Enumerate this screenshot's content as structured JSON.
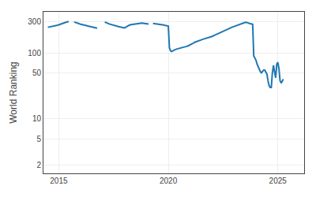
{
  "chart_data": {
    "type": "line",
    "ylabel": "World Ranking",
    "x": [
      2014.5,
      2014.6,
      2014.7,
      2014.8,
      2014.9,
      2015.0,
      2015.1,
      2015.15,
      2015.2,
      2015.3,
      2015.35,
      2015.4,
      2015.45,
      null,
      2015.7,
      2015.8,
      2015.9,
      2016.0,
      2016.1,
      2016.2,
      2016.3,
      2016.4,
      2016.5,
      2016.6,
      2016.7,
      2016.75,
      null,
      2017.1,
      2017.15,
      2017.2,
      2017.3,
      2017.4,
      2017.5,
      2017.6,
      2017.65,
      2017.7,
      2017.8,
      2017.85,
      2017.9,
      2018.0,
      2018.1,
      2018.15,
      2018.2,
      2018.3,
      2018.4,
      2018.5,
      2018.6,
      2018.7,
      2018.8,
      2018.9,
      2019.0,
      2019.1,
      null,
      2019.3,
      2019.4,
      2019.5,
      2019.6,
      2019.7,
      2019.8,
      2019.85,
      2019.9,
      2019.95,
      2020.0,
      2020.05,
      2020.1,
      2020.15,
      2020.2,
      2020.3,
      2020.4,
      2020.5,
      2020.6,
      2020.7,
      2020.8,
      2020.9,
      2021.0,
      2021.1,
      2021.2,
      2021.3,
      2021.4,
      2021.5,
      2021.6,
      2021.7,
      2021.8,
      2021.9,
      2022.0,
      2022.1,
      2022.2,
      2022.3,
      2022.4,
      2022.5,
      2022.6,
      2022.7,
      2022.8,
      2022.9,
      2023.0,
      2023.1,
      2023.2,
      2023.3,
      2023.35,
      2023.4,
      2023.45,
      2023.5,
      2023.55,
      2023.6,
      2023.65,
      2023.7,
      2023.75,
      2023.8,
      2023.85,
      2023.9,
      2024.0,
      2024.05,
      2024.1,
      2024.15,
      2024.2,
      2024.25,
      2024.3,
      2024.35,
      2024.4,
      2024.45,
      2024.5,
      2024.55,
      2024.6,
      2024.65,
      2024.7,
      2024.75,
      2024.8,
      2024.85,
      2024.9,
      2024.95,
      2025.0,
      2025.05,
      2025.1,
      2025.15,
      2025.2,
      2025.25
    ],
    "values": [
      245,
      248,
      253,
      257,
      262,
      267,
      272,
      278,
      282,
      290,
      295,
      298,
      300,
      null,
      295,
      290,
      280,
      272,
      268,
      265,
      258,
      252,
      248,
      245,
      242,
      238,
      null,
      295,
      292,
      285,
      275,
      268,
      262,
      258,
      255,
      252,
      248,
      245,
      242,
      240,
      250,
      258,
      262,
      268,
      272,
      275,
      278,
      280,
      283,
      280,
      278,
      274,
      null,
      280,
      278,
      275,
      272,
      268,
      265,
      262,
      260,
      258,
      255,
      120,
      108,
      105,
      108,
      112,
      115,
      118,
      120,
      122,
      125,
      128,
      132,
      138,
      145,
      150,
      155,
      158,
      162,
      165,
      168,
      172,
      178,
      185,
      192,
      198,
      205,
      215,
      222,
      228,
      235,
      245,
      252,
      260,
      268,
      275,
      280,
      283,
      288,
      290,
      292,
      290,
      285,
      280,
      278,
      275,
      272,
      90,
      78,
      68,
      62,
      57,
      52,
      50,
      52,
      55,
      55,
      52,
      48,
      38,
      32,
      30,
      30,
      50,
      65,
      52,
      42,
      68,
      72,
      58,
      38,
      35,
      38,
      40
    ],
    "xlim": [
      2014.3,
      2026.2
    ],
    "xticks": [
      2015,
      2020,
      2025
    ],
    "ylim": [
      1.5,
      420
    ],
    "yticks": [
      2,
      5,
      10,
      50,
      100,
      300
    ],
    "log": "y",
    "grid": true
  }
}
